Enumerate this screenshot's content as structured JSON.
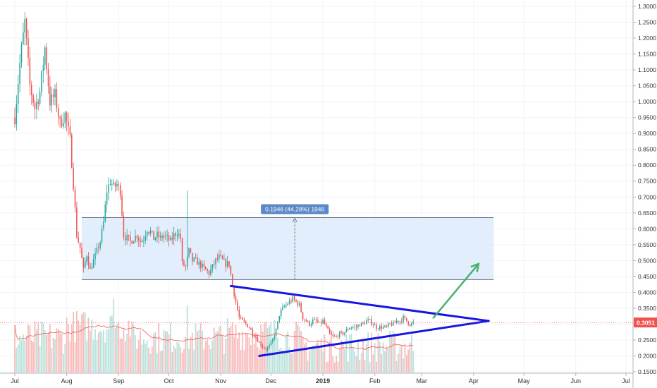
{
  "chart_data": {
    "type": "candlestick",
    "price_axis": {
      "ylim": [
        0.15,
        1.3
      ],
      "tick_labels": [
        "0.1500",
        "0.2000",
        "0.2500",
        "0.3000",
        "0.3500",
        "0.4000",
        "0.4500",
        "0.5000",
        "0.5500",
        "0.6000",
        "0.6500",
        "0.7000",
        "0.7500",
        "0.8000",
        "0.8500",
        "0.9000",
        "0.9500",
        "1.0000",
        "1.0500",
        "1.1000",
        "1.1500",
        "1.2000",
        "1.2500",
        "1.3000"
      ]
    },
    "time_axis": {
      "tick_labels": [
        "Jul",
        "Aug",
        "Sep",
        "Oct",
        "Nov",
        "Dec",
        "2019",
        "Feb",
        "Mar",
        "Apr",
        "May",
        "Jun",
        "Jul"
      ],
      "tick_days": [
        0,
        31,
        62,
        92,
        123,
        153,
        184,
        215,
        243,
        274,
        304,
        335,
        365
      ]
    },
    "current_price": {
      "value": 0.3051,
      "label": "0.3051"
    },
    "price_path": [
      [
        0,
        0.95
      ],
      [
        3,
        1.12
      ],
      [
        6,
        1.25
      ],
      [
        9,
        1.05
      ],
      [
        12,
        0.98
      ],
      [
        15,
        1.03
      ],
      [
        18,
        1.17
      ],
      [
        21,
        1.0
      ],
      [
        24,
        1.02
      ],
      [
        27,
        0.93
      ],
      [
        30,
        0.96
      ],
      [
        33,
        0.88
      ],
      [
        35,
        0.74
      ],
      [
        37,
        0.58
      ],
      [
        39,
        0.54
      ],
      [
        41,
        0.47
      ],
      [
        43,
        0.52
      ],
      [
        45,
        0.47
      ],
      [
        47,
        0.5
      ],
      [
        49,
        0.53
      ],
      [
        51,
        0.56
      ],
      [
        53,
        0.62
      ],
      [
        55,
        0.72
      ],
      [
        57,
        0.75
      ],
      [
        59,
        0.73
      ],
      [
        61,
        0.74
      ],
      [
        63,
        0.72
      ],
      [
        65,
        0.58
      ],
      [
        67,
        0.57
      ],
      [
        69,
        0.56
      ],
      [
        71,
        0.57
      ],
      [
        73,
        0.58
      ],
      [
        75,
        0.56
      ],
      [
        77,
        0.57
      ],
      [
        79,
        0.6
      ],
      [
        81,
        0.59
      ],
      [
        83,
        0.57
      ],
      [
        85,
        0.58
      ],
      [
        87,
        0.57
      ],
      [
        89,
        0.58
      ],
      [
        91,
        0.57
      ],
      [
        93,
        0.56
      ],
      [
        95,
        0.58
      ],
      [
        97,
        0.59
      ],
      [
        99,
        0.57
      ],
      [
        100,
        0.49
      ],
      [
        102,
        0.48
      ],
      [
        104,
        0.53
      ],
      [
        106,
        0.5
      ],
      [
        108,
        0.5
      ],
      [
        110,
        0.49
      ],
      [
        112,
        0.48
      ],
      [
        114,
        0.47
      ],
      [
        116,
        0.46
      ],
      [
        118,
        0.48
      ],
      [
        120,
        0.5
      ],
      [
        122,
        0.51
      ],
      [
        124,
        0.5
      ],
      [
        126,
        0.49
      ],
      [
        128,
        0.49
      ],
      [
        130,
        0.42
      ],
      [
        132,
        0.37
      ],
      [
        134,
        0.32
      ],
      [
        136,
        0.31
      ],
      [
        138,
        0.3
      ],
      [
        140,
        0.29
      ],
      [
        142,
        0.27
      ],
      [
        144,
        0.26
      ],
      [
        146,
        0.24
      ],
      [
        148,
        0.23
      ],
      [
        150,
        0.22
      ],
      [
        152,
        0.23
      ],
      [
        154,
        0.25
      ],
      [
        156,
        0.28
      ],
      [
        158,
        0.33
      ],
      [
        160,
        0.35
      ],
      [
        162,
        0.36
      ],
      [
        164,
        0.37
      ],
      [
        166,
        0.38
      ],
      [
        168,
        0.37
      ],
      [
        170,
        0.36
      ],
      [
        172,
        0.32
      ],
      [
        174,
        0.31
      ],
      [
        176,
        0.3
      ],
      [
        178,
        0.31
      ],
      [
        180,
        0.31
      ],
      [
        182,
        0.3
      ],
      [
        184,
        0.31
      ],
      [
        186,
        0.29
      ],
      [
        188,
        0.27
      ],
      [
        190,
        0.26
      ],
      [
        192,
        0.26
      ],
      [
        194,
        0.27
      ],
      [
        196,
        0.27
      ],
      [
        198,
        0.28
      ],
      [
        200,
        0.29
      ],
      [
        202,
        0.29
      ],
      [
        204,
        0.29
      ],
      [
        206,
        0.3
      ],
      [
        208,
        0.3
      ],
      [
        210,
        0.31
      ],
      [
        212,
        0.31
      ],
      [
        214,
        0.3
      ],
      [
        216,
        0.29
      ],
      [
        218,
        0.29
      ],
      [
        220,
        0.29
      ],
      [
        222,
        0.29
      ],
      [
        224,
        0.3
      ],
      [
        226,
        0.3
      ],
      [
        228,
        0.31
      ],
      [
        230,
        0.31
      ],
      [
        232,
        0.32
      ],
      [
        234,
        0.31
      ],
      [
        236,
        0.3
      ],
      [
        238,
        0.305
      ]
    ],
    "annotations": {
      "range_box": {
        "day_start": 40,
        "day_end": 286,
        "price_top": 0.635,
        "price_bottom": 0.44,
        "label": "0.1946 (44.28%) 1946"
      },
      "triangle_upper": {
        "from": [
          129,
          0.42
        ],
        "to": [
          283,
          0.31
        ]
      },
      "triangle_lower": {
        "from": [
          146,
          0.2
        ],
        "to": [
          283,
          0.31
        ]
      },
      "arrow": {
        "from": [
          250,
          0.32
        ],
        "to": [
          277,
          0.49
        ]
      }
    },
    "colors": {
      "up": "#26a69a",
      "down": "#ef5350",
      "volume_up": "#b9e2dc",
      "volume_down": "#f7bcbb",
      "box_fill": "#d5e7fb",
      "box_stroke": "#7aa4d6",
      "label_bg": "#5b88c8",
      "triangle": "#1616e0",
      "arrow": "#4ab06b",
      "price_line": "#ef5350",
      "grid": "#f0f3fa"
    }
  }
}
